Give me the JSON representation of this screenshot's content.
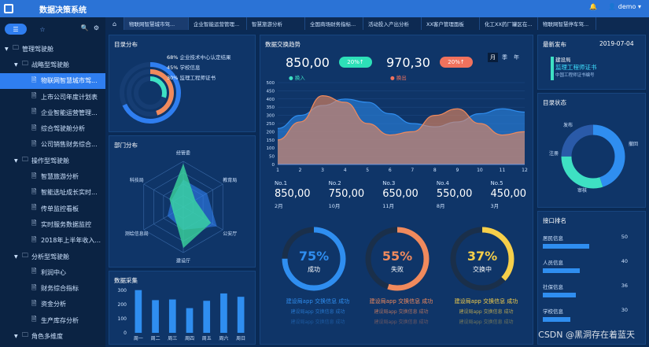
{
  "app": {
    "title": "数据决策系统",
    "user": "demo"
  },
  "sidebar": {
    "items": [
      {
        "label": "管理驾驶舱",
        "level": 0,
        "type": "folder"
      },
      {
        "label": "战略型驾驶舱",
        "level": 1,
        "type": "folder"
      },
      {
        "label": "物联网智慧城市驾...",
        "level": 2,
        "type": "file",
        "selected": true
      },
      {
        "label": "上市公司年度计划表",
        "level": 2,
        "type": "file"
      },
      {
        "label": "企业智能运营管理...",
        "level": 2,
        "type": "file"
      },
      {
        "label": "综合驾驶舱分析",
        "level": 2,
        "type": "file"
      },
      {
        "label": "公司销售财务综合...",
        "level": 2,
        "type": "file"
      },
      {
        "label": "操作型驾驶舱",
        "level": 1,
        "type": "folder"
      },
      {
        "label": "智慧旅游分析",
        "level": 2,
        "type": "file"
      },
      {
        "label": "智能选址成长实时...",
        "level": 2,
        "type": "file"
      },
      {
        "label": "传单监控看板",
        "level": 2,
        "type": "file"
      },
      {
        "label": "实时服务数据监控",
        "level": 2,
        "type": "file"
      },
      {
        "label": "2018年上半年收入...",
        "level": 2,
        "type": "file"
      },
      {
        "label": "分析型驾驶舱",
        "level": 1,
        "type": "folder"
      },
      {
        "label": "利润中心",
        "level": 2,
        "type": "file"
      },
      {
        "label": "财务综合指标",
        "level": 2,
        "type": "file"
      },
      {
        "label": "资金分析",
        "level": 2,
        "type": "file"
      },
      {
        "label": "生产库存分析",
        "level": 2,
        "type": "file"
      },
      {
        "label": "角色多维度",
        "level": 1,
        "type": "folder"
      }
    ]
  },
  "tabs": [
    {
      "label": "物联网智慧城市驾...",
      "active": true
    },
    {
      "label": "企业智能运营管理..."
    },
    {
      "label": "智慧旅游分析"
    },
    {
      "label": "全国商场财务指标..."
    },
    {
      "label": "活动投入产出分析"
    },
    {
      "label": "XX客户管理面板"
    },
    {
      "label": "化工XX药厂罐区在..."
    },
    {
      "label": "物联网智慧停车驾..."
    }
  ],
  "catalog": {
    "title": "目录分布",
    "items": [
      {
        "pct": "68%",
        "label": "企业技术中心认定结果",
        "value": 68,
        "color": "#2f7ef0"
      },
      {
        "pct": "45%",
        "label": "学校信息",
        "value": 45,
        "color": "#f08a5d"
      },
      {
        "pct": "30%",
        "label": "监理工程师证书",
        "value": 30,
        "color": "#3ee0c3"
      }
    ]
  },
  "dept": {
    "title": "部门分布",
    "labels": [
      "经管委",
      "教育局",
      "公安厅",
      "建设厅",
      "测绘信息局",
      "科技局"
    ]
  },
  "collect": {
    "title": "数据采集",
    "yticks": [
      "300",
      "200",
      "100",
      "0"
    ],
    "categories": [
      "周一",
      "周二",
      "周三",
      "周四",
      "周五",
      "周六",
      "周日"
    ],
    "values": [
      320,
      245,
      250,
      185,
      240,
      295,
      270
    ],
    "ymax": 350
  },
  "exchange": {
    "title": "数据交换趋势",
    "in_value": "850,00",
    "in_change": "20%↑",
    "out_value": "970,30",
    "out_change": "20%↑",
    "in_label": "换入",
    "out_label": "换出",
    "periods": [
      "月",
      "季",
      "年"
    ],
    "xticks": [
      "1",
      "2",
      "3",
      "4",
      "5",
      "6",
      "7",
      "8",
      "9",
      "10",
      "11",
      "12"
    ],
    "yticks": [
      "500",
      "450",
      "400",
      "350",
      "300",
      "250",
      "200",
      "150",
      "100",
      "50",
      "0"
    ],
    "chart_data": {
      "type": "area",
      "x": [
        1,
        2,
        3,
        4,
        5,
        6,
        7,
        8,
        9,
        10,
        11,
        12
      ],
      "ylim": [
        0,
        500
      ],
      "series": [
        {
          "name": "换入",
          "values": [
            220,
            300,
            360,
            400,
            380,
            310,
            250,
            230,
            260,
            310,
            340,
            320
          ]
        },
        {
          "name": "换出",
          "values": [
            150,
            260,
            420,
            380,
            250,
            180,
            200,
            300,
            340,
            250,
            180,
            200
          ]
        }
      ]
    }
  },
  "ranks": [
    {
      "no": "No.1",
      "value": "850,00",
      "month": "2月"
    },
    {
      "no": "No.2",
      "value": "750,00",
      "month": "10月"
    },
    {
      "no": "No.3",
      "value": "650,00",
      "month": "11月"
    },
    {
      "no": "No.4",
      "value": "550,00",
      "month": "8月"
    },
    {
      "no": "No.5",
      "value": "450,00",
      "month": "3月"
    }
  ],
  "gauges": [
    {
      "pct": "75%",
      "label": "成功",
      "value": 75,
      "color": "#2f8ef0",
      "lines": [
        "建设局app 交换信息 成功",
        "建设局app 交换信息 成功",
        "建设局app 交换信息 成功"
      ]
    },
    {
      "pct": "55%",
      "label": "失败",
      "value": 55,
      "color": "#f08a5d",
      "lines": [
        "建设局app 交换信息 成功",
        "建设局app 交换信息 成功",
        "建设局app 交换信息 成功"
      ]
    },
    {
      "pct": "37%",
      "label": "交换中",
      "value": 37,
      "color": "#f6cf4a",
      "lines": [
        "建设局app 交换信息 成功",
        "建设局app 交换信息 成功",
        "建设局app 交换信息 成功"
      ]
    }
  ],
  "latest": {
    "title": "最新发布",
    "date": "2019-07-04",
    "items": [
      "建设局",
      "监理工程师证书",
      "中国工程师证书编号"
    ]
  },
  "status": {
    "title": "目录状态",
    "labels": [
      "发布",
      "撤回",
      "注册",
      "审核"
    ]
  },
  "api": {
    "title": "接口排名",
    "items": [
      {
        "label": "居民信息",
        "value": "50",
        "pct": 1.0
      },
      {
        "label": "人员信息",
        "value": "40",
        "pct": 0.8
      },
      {
        "label": "社保信息",
        "value": "36",
        "pct": 0.72
      },
      {
        "label": "学校信息",
        "value": "30",
        "pct": 0.6
      }
    ]
  },
  "watermark": "CSDN @黑洞存在着蓝天"
}
